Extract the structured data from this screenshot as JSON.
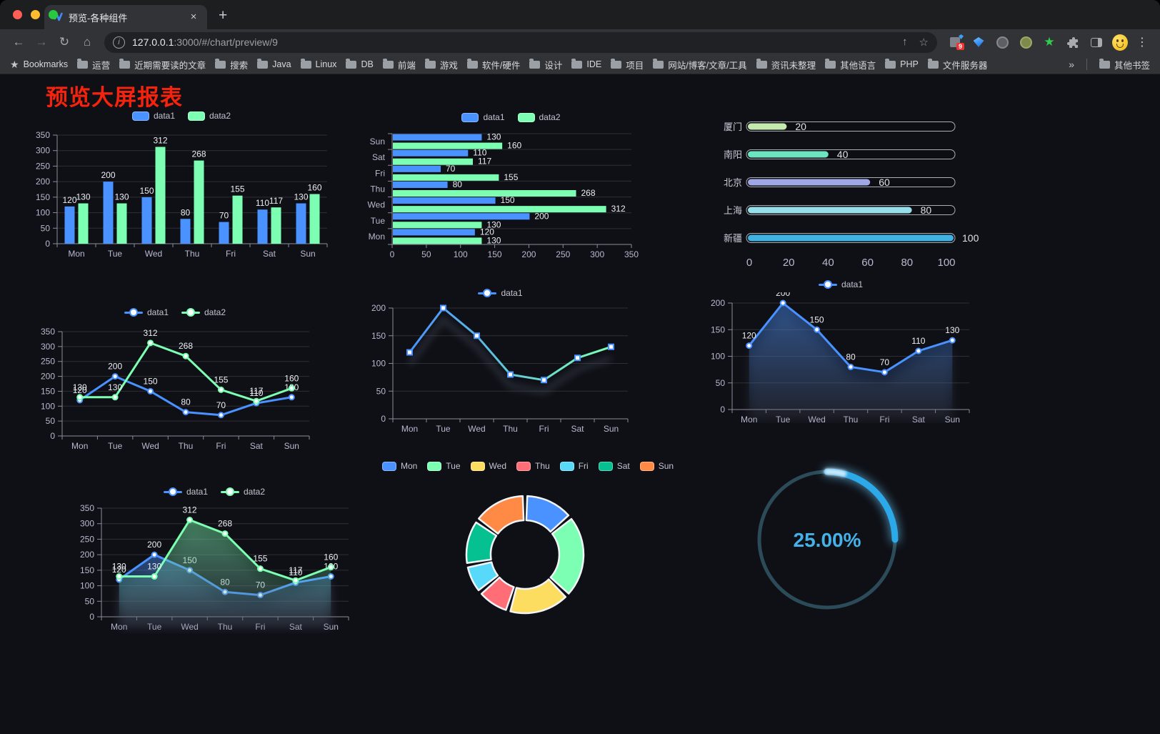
{
  "page": {
    "title": "预览大屏报表",
    "title_color": "#f5230e",
    "background": "#0f1016"
  },
  "browser": {
    "tab": {
      "title": "预览-各种组件",
      "close": "×",
      "new_tab": "+"
    },
    "toolbar": {
      "back": "←",
      "forward": "→",
      "reload": "↻",
      "home": "⌂",
      "share": "↑",
      "star": "☆",
      "menu": "⋮"
    },
    "url": {
      "info": "i",
      "host": "127.0.0.1",
      "rest": ":3000/#/chart/preview/9"
    },
    "extensions": {
      "badge": "9",
      "star": "★"
    },
    "bookmarks": {
      "star": "★",
      "label": "Bookmarks",
      "folders": [
        "运营",
        "近期需要读的文章",
        "搜索",
        "Java",
        "Linux",
        "DB",
        "前端",
        "游戏",
        "软件/硬件",
        "设计",
        "IDE",
        "项目",
        "网站/博客/文章/工具",
        "资讯未整理",
        "其他语言",
        "PHP",
        "文件服务器"
      ],
      "overflow": "»",
      "other": "其他书签"
    }
  },
  "chart_data": [
    {
      "id": "bar1",
      "type": "bar",
      "categories": [
        "Mon",
        "Tue",
        "Wed",
        "Thu",
        "Fri",
        "Sat",
        "Sun"
      ],
      "series": [
        {
          "name": "data1",
          "color": "#4992ff",
          "values": [
            120,
            200,
            150,
            80,
            70,
            110,
            130
          ]
        },
        {
          "name": "data2",
          "color": "#7cffb2",
          "values": [
            130,
            130,
            312,
            268,
            155,
            117,
            160
          ]
        }
      ],
      "ylim": [
        0,
        350
      ],
      "ytick": 50,
      "legend_position": "top",
      "grid": true
    },
    {
      "id": "hbar1",
      "type": "bar",
      "orientation": "horizontal",
      "categories": [
        "Mon",
        "Tue",
        "Wed",
        "Thu",
        "Fri",
        "Sat",
        "Sun"
      ],
      "series": [
        {
          "name": "data1",
          "color": "#4992ff",
          "values": [
            120,
            200,
            150,
            80,
            70,
            110,
            130
          ]
        },
        {
          "name": "data2",
          "color": "#7cffb2",
          "values": [
            130,
            130,
            312,
            268,
            155,
            117,
            160
          ]
        }
      ],
      "xlim": [
        0,
        350
      ],
      "xtick": 50,
      "legend_position": "top"
    },
    {
      "id": "progress1",
      "type": "bar",
      "orientation": "horizontal",
      "variant": "progress-capsule",
      "items": [
        {
          "label": "厦门",
          "value": 20,
          "color": "#c4ebad"
        },
        {
          "label": "南阳",
          "value": 40,
          "color": "#6be6c1"
        },
        {
          "label": "北京",
          "value": 60,
          "color": "#a0a7e6"
        },
        {
          "label": "上海",
          "value": 80,
          "color": "#96dee8"
        },
        {
          "label": "新疆",
          "value": 100,
          "color": "#3fb1e3"
        }
      ],
      "xlim": [
        0,
        100
      ],
      "xticks": [
        0,
        20,
        40,
        60,
        80,
        100
      ]
    },
    {
      "id": "line1",
      "type": "line",
      "categories": [
        "Mon",
        "Tue",
        "Wed",
        "Thu",
        "Fri",
        "Sat",
        "Sun"
      ],
      "series": [
        {
          "name": "data1",
          "color": "#4992ff",
          "values": [
            120,
            200,
            150,
            80,
            70,
            110,
            130
          ]
        },
        {
          "name": "data2",
          "color": "#7cffb2",
          "values": [
            130,
            130,
            312,
            268,
            155,
            117,
            160
          ]
        }
      ],
      "ylim": [
        0,
        350
      ],
      "ytick": 50,
      "labels": true,
      "marker": "circle",
      "legend_position": "top"
    },
    {
      "id": "line2",
      "type": "line",
      "gradient": true,
      "shadow": true,
      "categories": [
        "Mon",
        "Tue",
        "Wed",
        "Thu",
        "Fri",
        "Sat",
        "Sun"
      ],
      "series": [
        {
          "name": "data1",
          "color": "#4992ff",
          "color_start": "#4992ff",
          "color_end": "#7cffb2",
          "values": [
            120,
            200,
            150,
            80,
            70,
            110,
            130
          ]
        }
      ],
      "ylim": [
        0,
        200
      ],
      "ytick": 50,
      "labels": false,
      "marker": "square",
      "legend_position": "top"
    },
    {
      "id": "area1",
      "type": "area",
      "shadow": true,
      "categories": [
        "Mon",
        "Tue",
        "Wed",
        "Thu",
        "Fri",
        "Sat",
        "Sun"
      ],
      "series": [
        {
          "name": "data1",
          "color": "#4992ff",
          "values": [
            120,
            200,
            150,
            80,
            70,
            110,
            130
          ]
        }
      ],
      "ylim": [
        0,
        200
      ],
      "ytick": 50,
      "labels": true,
      "marker": "circle",
      "legend_position": "top"
    },
    {
      "id": "area2",
      "type": "area",
      "shadow": true,
      "categories": [
        "Mon",
        "Tue",
        "Wed",
        "Thu",
        "Fri",
        "Sat",
        "Sun"
      ],
      "series": [
        {
          "name": "data1",
          "color": "#4992ff",
          "values": [
            120,
            200,
            150,
            80,
            70,
            110,
            130
          ]
        },
        {
          "name": "data2",
          "color": "#7cffb2",
          "values": [
            130,
            130,
            312,
            268,
            155,
            117,
            160
          ]
        }
      ],
      "ylim": [
        0,
        350
      ],
      "ytick": 50,
      "labels": true,
      "marker": "circle",
      "legend_position": "top"
    },
    {
      "id": "pie1",
      "type": "pie",
      "donut": true,
      "labels": [
        "Mon",
        "Tue",
        "Wed",
        "Thu",
        "Fri",
        "Sat",
        "Sun"
      ],
      "values": [
        120,
        200,
        150,
        80,
        70,
        110,
        130
      ],
      "colors": [
        "#4992ff",
        "#7cffb2",
        "#fddd60",
        "#ff6e76",
        "#58d9f9",
        "#05c091",
        "#ff8a45"
      ],
      "border_color": "#f2f4f7",
      "legend_position": "top"
    },
    {
      "id": "gauge1",
      "type": "gauge",
      "value": 25,
      "value_text": "25.00%",
      "color": "#2ba9e8",
      "track_color": "#2c4b58",
      "text_color": "#45b1e8"
    }
  ]
}
